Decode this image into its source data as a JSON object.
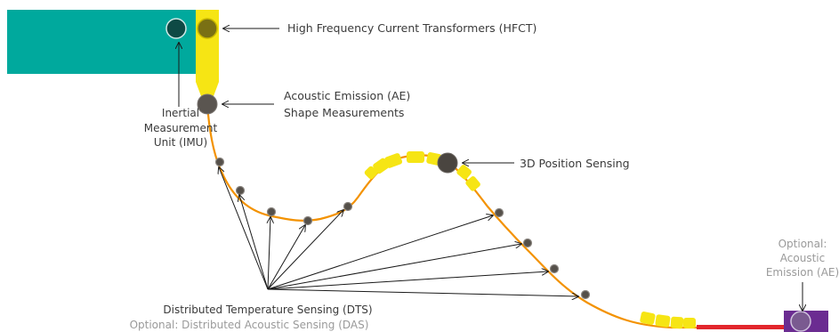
{
  "labels": {
    "hfct": "High Frequency Current Transformers (HFCT)",
    "ae_line1": "Acoustic Emission (AE)",
    "ae_line2": "Shape Measurements",
    "imu_line1": "Inertial",
    "imu_line2": "Measurement",
    "imu_line3": "Unit (IMU)",
    "pos3d": "3D Position Sensing",
    "dts": "Distributed Temperature Sensing (DTS)",
    "das": "Optional: Distributed Acoustic Sensing (DAS)",
    "opt_ae_line1": "Optional:",
    "opt_ae_line2": "Acoustic",
    "opt_ae_line3": "Emission (AE)"
  },
  "colors": {
    "vessel": "#00A99D",
    "catheter_head": "#F6E514",
    "cable": "#F39200",
    "yellow_segments": "#F6E514",
    "red_segment": "#E2262C",
    "end_box": "#6B2C91",
    "imu_dot": "#0E4A45",
    "hfct_dot": "#7A7014",
    "sensor_dot": "#55504a"
  },
  "icons": [
    "imu-sensor-icon",
    "hfct-sensor-icon",
    "ae-sensor-icon",
    "position-sensor-icon",
    "end-ae-sensor-icon"
  ]
}
